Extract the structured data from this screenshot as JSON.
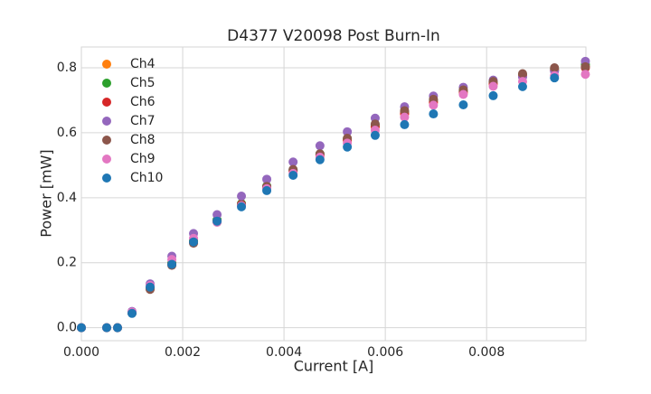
{
  "chart_data": {
    "type": "scatter",
    "title": "D4377 V20098 Post Burn-In",
    "x_label": "Current [A]",
    "y_label": "Power [mW]",
    "x": [
      0,
      0.0005,
      0.000714,
      0.001,
      0.001357,
      0.001786,
      0.002214,
      0.002679,
      0.00316,
      0.00366,
      0.00418,
      0.00471,
      0.00525,
      0.0058,
      0.00638,
      0.00695,
      0.00754,
      0.00813,
      0.00871,
      0.00934,
      0.00995
    ],
    "series": [
      {
        "name": "Ch4",
        "color": "#ff7f0e",
        "values": [
          0,
          0,
          0,
          0.046,
          0.122,
          0.198,
          0.265,
          0.33,
          0.38,
          0.432,
          0.482,
          0.53,
          0.575,
          0.618,
          0.658,
          0.692,
          0.722,
          0.75,
          0.774,
          0.792,
          0.805
        ]
      },
      {
        "name": "Ch5",
        "color": "#2ca02c",
        "values": [
          0,
          0,
          0,
          0.047,
          0.124,
          0.2,
          0.268,
          0.332,
          0.382,
          0.436,
          0.486,
          0.535,
          0.582,
          0.625,
          0.665,
          0.7,
          0.73,
          0.757,
          0.78,
          0.797,
          0.81
        ]
      },
      {
        "name": "Ch6",
        "color": "#d62728",
        "values": [
          0,
          0,
          0,
          0.046,
          0.12,
          0.195,
          0.262,
          0.328,
          0.38,
          0.433,
          0.483,
          0.532,
          0.578,
          0.62,
          0.66,
          0.695,
          0.726,
          0.752,
          0.775,
          0.793,
          0.8
        ]
      },
      {
        "name": "Ch7",
        "color": "#9467bd",
        "values": [
          0,
          0,
          0,
          0.05,
          0.135,
          0.22,
          0.29,
          0.348,
          0.405,
          0.457,
          0.51,
          0.56,
          0.603,
          0.645,
          0.68,
          0.713,
          0.74,
          0.762,
          0.772,
          0.79,
          0.82
        ]
      },
      {
        "name": "Ch8",
        "color": "#8c564b",
        "values": [
          0,
          0,
          0,
          0.045,
          0.118,
          0.192,
          0.26,
          0.325,
          0.378,
          0.435,
          0.487,
          0.535,
          0.583,
          0.627,
          0.668,
          0.703,
          0.732,
          0.758,
          0.782,
          0.8,
          0.803
        ]
      },
      {
        "name": "Ch9",
        "color": "#e377c2",
        "values": [
          0,
          0,
          0,
          0.048,
          0.13,
          0.21,
          0.275,
          0.325,
          0.375,
          0.428,
          0.475,
          0.525,
          0.568,
          0.608,
          0.648,
          0.685,
          0.718,
          0.743,
          0.758,
          0.776,
          0.78
        ]
      },
      {
        "name": "Ch10",
        "color": "#1f77b4",
        "values": [
          0,
          0,
          0,
          0.044,
          0.125,
          0.195,
          0.264,
          0.328,
          0.372,
          0.422,
          0.469,
          0.517,
          0.556,
          0.592,
          0.625,
          0.658,
          0.686,
          0.714,
          0.742,
          0.769,
          null
        ]
      }
    ],
    "xlim": [
      0,
      0.00996
    ],
    "ylim": [
      -0.04,
      0.864
    ],
    "xticks": [
      {
        "value": 0,
        "label": "0.000"
      },
      {
        "value": 0.002,
        "label": "0.002"
      },
      {
        "value": 0.004,
        "label": "0.004"
      },
      {
        "value": 0.006,
        "label": "0.006"
      },
      {
        "value": 0.008,
        "label": "0.008"
      }
    ],
    "yticks": [
      {
        "value": 0,
        "label": "0.0"
      },
      0.2,
      0.4,
      0.6,
      0.8
    ],
    "grid": true,
    "legend": "upper left"
  }
}
